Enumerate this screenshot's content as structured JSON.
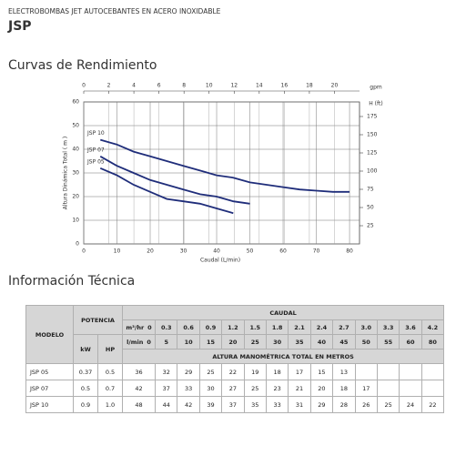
{
  "header": {
    "subtitle": "ELECTROBOMBAS JET AUTOCEBANTES EN ACERO INOXIDABLE",
    "title": "JSP"
  },
  "chart_section_title": "Curvas de Rendimiento",
  "chart_data": {
    "type": "line",
    "xlabel": "Caudal (L/min)",
    "ylabel": "Altura Dinámica Total ( m )",
    "x2label": "gpm",
    "y2label": "H (ft)",
    "x": [
      5,
      10,
      15,
      20,
      25,
      30,
      35,
      40,
      45,
      50,
      55,
      60,
      65,
      70,
      75,
      80
    ],
    "xlim": [
      0,
      83
    ],
    "xticks": [
      0,
      10,
      20,
      30,
      40,
      50,
      60,
      70,
      80
    ],
    "x2lim": [
      0,
      22
    ],
    "x2ticks": [
      0,
      2,
      4,
      6,
      8,
      10,
      12,
      14,
      16,
      18,
      20
    ],
    "ylim": [
      0,
      60
    ],
    "yticks": [
      0,
      10,
      20,
      30,
      40,
      50,
      60
    ],
    "y2lim": [
      0,
      195
    ],
    "y2ticks": [
      25,
      50,
      75,
      100,
      125,
      150,
      175
    ],
    "grid": true,
    "series": [
      {
        "name": "JSP 10",
        "color": "#1f2d7a",
        "values": [
          44,
          42,
          39,
          37,
          35,
          33,
          31,
          29,
          28,
          26,
          25,
          24,
          23,
          22.5,
          22,
          22
        ]
      },
      {
        "name": "JSP 07",
        "color": "#1f2d7a",
        "values": [
          37,
          33,
          30,
          27,
          25,
          23,
          21,
          20,
          18,
          17,
          null,
          null,
          null,
          null,
          null,
          null
        ]
      },
      {
        "name": "JSP 05",
        "color": "#1f2d7a",
        "values": [
          32,
          29,
          25,
          22,
          19,
          18,
          17,
          15,
          13,
          null,
          null,
          null,
          null,
          null,
          null,
          null
        ]
      }
    ]
  },
  "table_section_title": "Información Técnica",
  "table": {
    "modelo": "MODELO",
    "potencia": "POTENCIA",
    "caudal": "CAUDAL",
    "kw": "kW",
    "hp": "HP",
    "m3hr_unit": "m³/hr",
    "lmin_unit": "l/min",
    "altura": "ALTURA MANOMÉTRICA TOTAL EN METROS",
    "m3hr": [
      "0",
      "0.3",
      "0.6",
      "0.9",
      "1.2",
      "1.5",
      "1.8",
      "2.1",
      "2.4",
      "2.7",
      "3.0",
      "3.3",
      "3.6",
      "4.2"
    ],
    "lmin": [
      "0",
      "5",
      "10",
      "15",
      "20",
      "25",
      "30",
      "35",
      "40",
      "45",
      "50",
      "55",
      "60",
      "80"
    ],
    "rows": [
      {
        "model": "JSP 05",
        "kw": "0.37",
        "hp": "0.5",
        "values": [
          "36",
          "32",
          "29",
          "25",
          "22",
          "19",
          "18",
          "17",
          "15",
          "13"
        ]
      },
      {
        "model": "JSP 07",
        "kw": "0.5",
        "hp": "0.7",
        "values": [
          "42",
          "37",
          "33",
          "30",
          "27",
          "25",
          "23",
          "21",
          "20",
          "18",
          "17"
        ]
      },
      {
        "model": "JSP 10",
        "kw": "0.9",
        "hp": "1.0",
        "values": [
          "48",
          "44",
          "42",
          "39",
          "37",
          "35",
          "33",
          "31",
          "29",
          "28",
          "26",
          "25",
          "24",
          "22"
        ]
      }
    ]
  }
}
